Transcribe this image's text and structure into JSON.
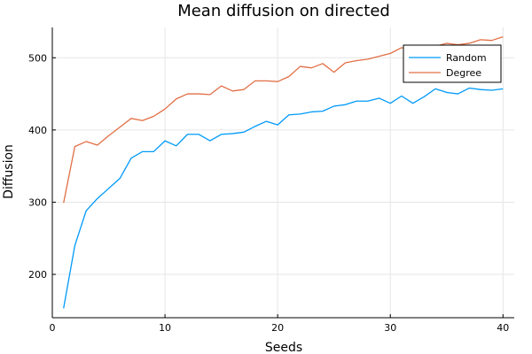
{
  "chart_data": {
    "type": "line",
    "title": "Mean diffusion on directed",
    "xlabel": "Seeds",
    "ylabel": "Diffusion",
    "xlim": [
      0,
      41
    ],
    "ylim": [
      140,
      542
    ],
    "xticks": [
      0,
      10,
      20,
      30,
      40
    ],
    "yticks": [
      200,
      300,
      400,
      500
    ],
    "grid": true,
    "legend": "top-right",
    "x": [
      1,
      2,
      3,
      4,
      5,
      6,
      7,
      8,
      9,
      10,
      11,
      12,
      13,
      14,
      15,
      16,
      17,
      18,
      19,
      20,
      21,
      22,
      23,
      24,
      25,
      26,
      27,
      28,
      29,
      30,
      31,
      32,
      33,
      34,
      35,
      36,
      37,
      38,
      39,
      40
    ],
    "series": [
      {
        "name": "Random",
        "color": "#009af9",
        "values": [
          153,
          240,
          288,
          305,
          319,
          333,
          361,
          370,
          370,
          385,
          378,
          394,
          394,
          385,
          394,
          395,
          397,
          405,
          412,
          407,
          421,
          422,
          425,
          426,
          433,
          435,
          440,
          440,
          444,
          437,
          447,
          437,
          446,
          457,
          452,
          450,
          458,
          456,
          455,
          457
        ]
      },
      {
        "name": "Degree",
        "color": "#e26f46",
        "values": [
          299,
          377,
          384,
          379,
          392,
          404,
          416,
          413,
          419,
          429,
          443,
          450,
          450,
          449,
          461,
          454,
          456,
          468,
          468,
          467,
          474,
          488,
          486,
          492,
          480,
          493,
          496,
          498,
          502,
          506,
          514,
          510,
          508,
          516,
          520,
          518,
          520,
          525,
          524,
          529
        ]
      }
    ]
  }
}
